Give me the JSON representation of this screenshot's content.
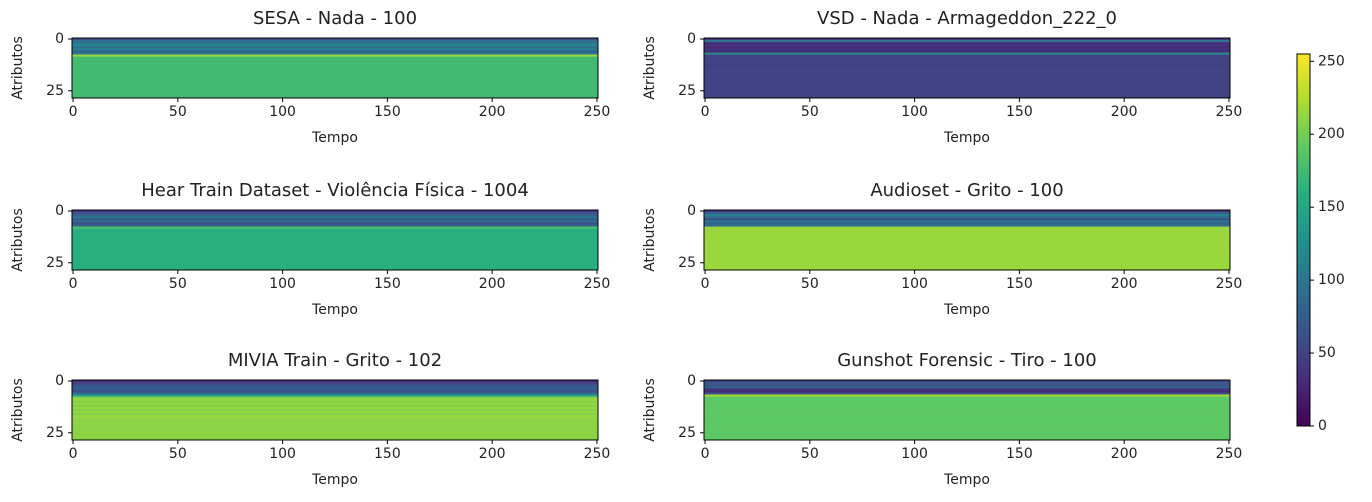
{
  "chart_data": [
    {
      "type": "heatmap",
      "title": "SESA - Nada - 100",
      "xlabel": "Tempo",
      "ylabel": "Atributos",
      "colormap": "viridis",
      "xlim": [
        -0.5,
        250.5
      ],
      "xticks": [
        0,
        50,
        100,
        150,
        200,
        250
      ],
      "ylim": [
        28.5,
        -0.5
      ],
      "yticks": [
        0,
        25
      ],
      "row_values": [
        60,
        90,
        100,
        120,
        90,
        110,
        80,
        100,
        215,
        175,
        175,
        175,
        175,
        175,
        175,
        175,
        175,
        175,
        175,
        175,
        175,
        175,
        175,
        175,
        175,
        175,
        175,
        175,
        175
      ]
    },
    {
      "type": "heatmap",
      "title": "VSD - Nada - Armageddon_222_0",
      "xlabel": "Tempo",
      "ylabel": "Atributos",
      "colormap": "viridis",
      "xlim": [
        -0.5,
        250.5
      ],
      "xticks": [
        0,
        50,
        100,
        150,
        200,
        250
      ],
      "ylim": [
        28.5,
        -0.5
      ],
      "yticks": [
        0,
        25
      ],
      "row_values": [
        40,
        100,
        30,
        40,
        30,
        35,
        30,
        120,
        50,
        50,
        50,
        50,
        50,
        50,
        50,
        50,
        50,
        50,
        50,
        50,
        50,
        50,
        50,
        50,
        50,
        50,
        50,
        50,
        50
      ]
    },
    {
      "type": "heatmap",
      "title": "Hear Train Dataset - Violência Física - 1004",
      "xlabel": "Tempo",
      "ylabel": "Atributos",
      "colormap": "viridis",
      "xlim": [
        -0.5,
        250.5
      ],
      "xticks": [
        0,
        50,
        100,
        150,
        200,
        250
      ],
      "ylim": [
        28.5,
        -0.5
      ],
      "yticks": [
        0,
        25
      ],
      "row_values": [
        40,
        60,
        80,
        100,
        70,
        90,
        60,
        80,
        180,
        160,
        160,
        160,
        160,
        160,
        160,
        160,
        160,
        160,
        160,
        160,
        160,
        160,
        160,
        160,
        160,
        160,
        160,
        160,
        160
      ]
    },
    {
      "type": "heatmap",
      "title": "Audioset - Grito - 100",
      "xlabel": "Tempo",
      "ylabel": "Atributos",
      "colormap": "viridis",
      "xlim": [
        -0.5,
        250.5
      ],
      "xticks": [
        0,
        50,
        100,
        150,
        200,
        250
      ],
      "ylim": [
        28.5,
        -0.5
      ],
      "yticks": [
        0,
        25
      ],
      "row_values": [
        40,
        80,
        110,
        90,
        60,
        100,
        80,
        90,
        215,
        215,
        215,
        215,
        215,
        215,
        215,
        215,
        215,
        215,
        215,
        215,
        215,
        215,
        215,
        215,
        215,
        215,
        215,
        215,
        215
      ]
    },
    {
      "type": "heatmap",
      "title": "MIVIA Train - Grito - 102",
      "xlabel": "Tempo",
      "ylabel": "Atributos",
      "colormap": "viridis",
      "xlim": [
        -0.5,
        250.5
      ],
      "xticks": [
        0,
        50,
        100,
        150,
        200,
        250
      ],
      "ylim": [
        28.5,
        -0.5
      ],
      "yticks": [
        0,
        25
      ],
      "row_values": [
        30,
        50,
        60,
        80,
        70,
        60,
        90,
        140,
        205,
        215,
        205,
        215,
        205,
        215,
        205,
        215,
        205,
        215,
        210,
        210,
        210,
        210,
        210,
        210,
        210,
        210,
        210,
        210,
        210
      ]
    },
    {
      "type": "heatmap",
      "title": "Gunshot Forensic - Tiro - 100",
      "xlabel": "Tempo",
      "ylabel": "Atributos",
      "colormap": "viridis",
      "xlim": [
        -0.5,
        250.5
      ],
      "xticks": [
        0,
        50,
        100,
        150,
        200,
        250
      ],
      "ylim": [
        28.5,
        -0.5
      ],
      "yticks": [
        0,
        25
      ],
      "row_values": [
        50,
        70,
        60,
        80,
        40,
        30,
        60,
        220,
        190,
        190,
        190,
        190,
        190,
        190,
        190,
        190,
        190,
        190,
        190,
        190,
        190,
        190,
        190,
        190,
        190,
        190,
        190,
        190,
        190
      ]
    },
    {
      "type": "colorbar",
      "colormap": "viridis",
      "ylim": [
        0,
        255
      ],
      "yticks": [
        0,
        50,
        100,
        150,
        200,
        250
      ]
    }
  ]
}
